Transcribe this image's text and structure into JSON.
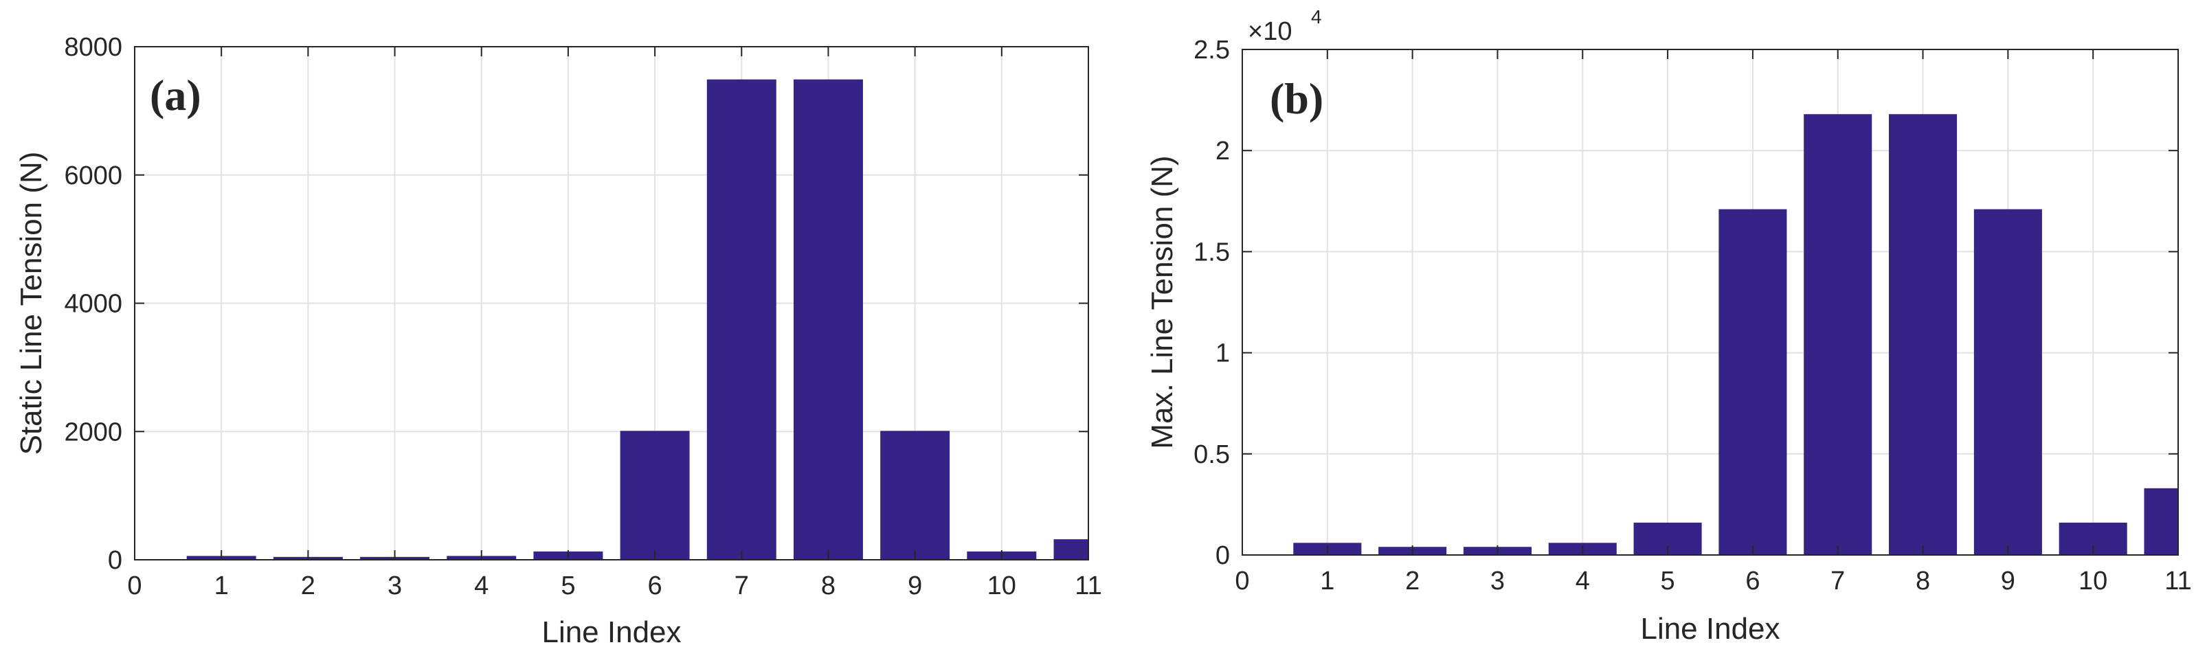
{
  "chart_data": [
    {
      "type": "bar",
      "panel_label": "(a)",
      "xlabel": "Line Index",
      "ylabel": "Static Line Tension (N)",
      "categories": [
        1,
        2,
        3,
        4,
        5,
        6,
        7,
        8,
        9,
        10,
        11
      ],
      "values": [
        60,
        45,
        45,
        60,
        130,
        2010,
        7490,
        7490,
        2010,
        130,
        320
      ],
      "xlim": [
        0,
        11
      ],
      "ylim": [
        0,
        8000
      ],
      "xticks": [
        "0",
        "1",
        "2",
        "3",
        "4",
        "5",
        "6",
        "7",
        "8",
        "9",
        "10",
        "11"
      ],
      "yticks": [
        "0",
        "2000",
        "4000",
        "6000",
        "8000"
      ],
      "ytick_values": [
        0,
        2000,
        4000,
        6000,
        8000
      ],
      "grid": true,
      "bar_color": "#352388"
    },
    {
      "type": "bar",
      "panel_label": "(b)",
      "xlabel": "Line Index",
      "ylabel": "Max. Line Tension (N)",
      "categories": [
        1,
        2,
        3,
        4,
        5,
        6,
        7,
        8,
        9,
        10,
        11
      ],
      "values": [
        0.06,
        0.04,
        0.04,
        0.06,
        0.16,
        1.71,
        2.18,
        2.18,
        1.71,
        0.16,
        0.33
      ],
      "xlim": [
        0,
        11
      ],
      "ylim": [
        0,
        2.5
      ],
      "xticks": [
        "0",
        "1",
        "2",
        "3",
        "4",
        "5",
        "6",
        "7",
        "8",
        "9",
        "10",
        "11"
      ],
      "yticks": [
        "0",
        "0.5",
        "1",
        "1.5",
        "2",
        "2.5"
      ],
      "ytick_values": [
        0,
        0.5,
        1,
        1.5,
        2,
        2.5
      ],
      "exponent_base": "×10",
      "exponent_power": "4",
      "grid": true,
      "bar_color": "#352388"
    }
  ]
}
